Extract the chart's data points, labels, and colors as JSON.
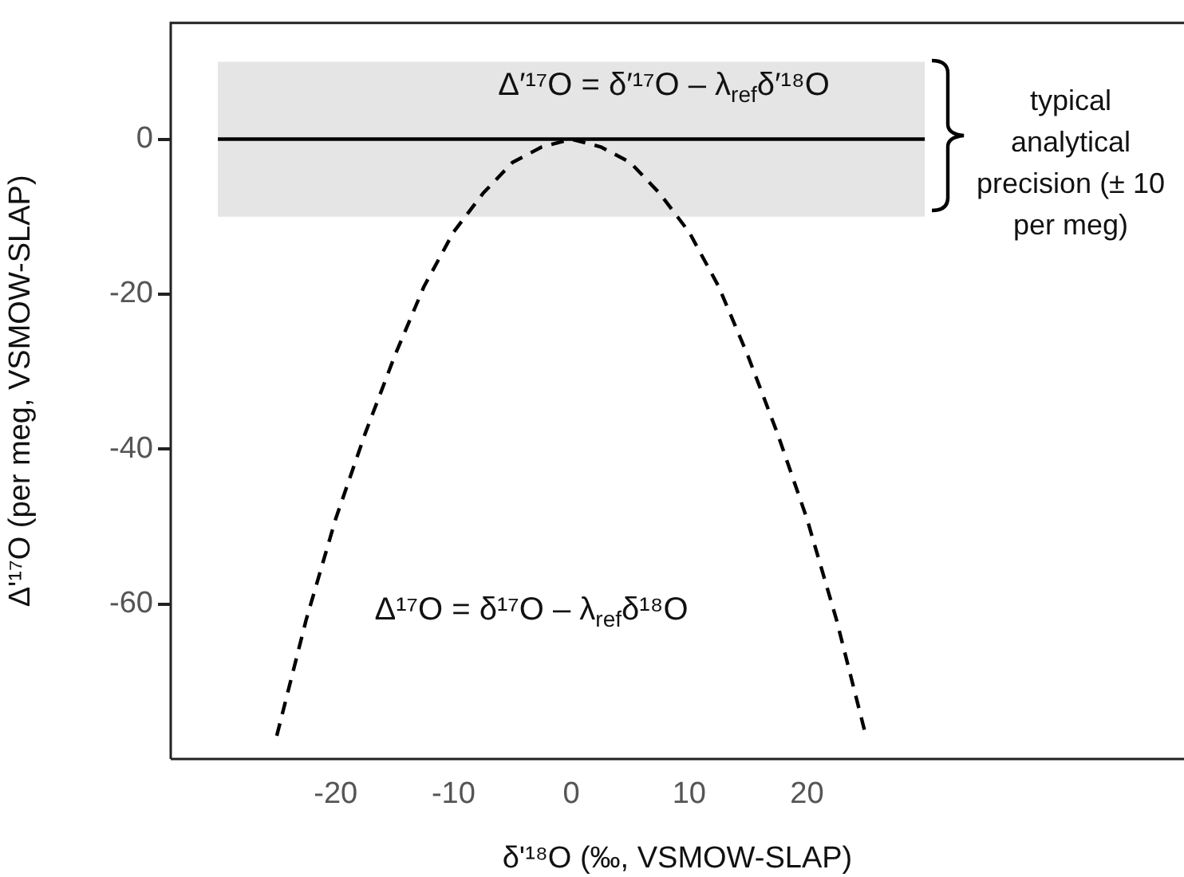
{
  "chart_data": {
    "type": "line",
    "xlabel": "δ'¹⁸O (‰, VSMOW-SLAP)",
    "ylabel": "Δ'¹⁷O (per meg, VSMOW-SLAP)",
    "xlim": [
      -34,
      52
    ],
    "ylim": [
      -80,
      15
    ],
    "xticks": [
      -20,
      -10,
      0,
      10,
      20
    ],
    "yticks": [
      0,
      -20,
      -40,
      -60
    ],
    "grid": false,
    "legend": false,
    "marker": "none",
    "series": [
      {
        "x": [
          -30,
          30
        ],
        "values": [
          0,
          0
        ],
        "color": "#000000",
        "line_style": "solid"
      },
      {
        "x": [
          -25,
          -22.5,
          -20,
          -17.5,
          -15,
          -12.5,
          -10,
          -7.5,
          -5,
          -2.5,
          0,
          2.5,
          5,
          7.5,
          10,
          12.5,
          15,
          17.5,
          20,
          22.5,
          25
        ],
        "values": [
          -77,
          -62,
          -49,
          -38,
          -28,
          -19,
          -12,
          -7,
          -3,
          -1,
          0,
          -1,
          -3,
          -7,
          -12,
          -19,
          -28,
          -38,
          -49,
          -62,
          -77
        ],
        "color": "#000000",
        "line_style": "dashed"
      }
    ],
    "bands": [
      {
        "axis": "y",
        "from": -10,
        "to": 10,
        "color": "#e5e5e5"
      }
    ],
    "annotations": [
      "Δ′¹⁷O = δ′¹⁷O – λ$_{ref}$δ′¹⁸O",
      "Δ¹⁷O = δ¹⁷O – λ$_{ref}$δ¹⁸O",
      "typical analytical precision (± 10 per meg)"
    ]
  }
}
